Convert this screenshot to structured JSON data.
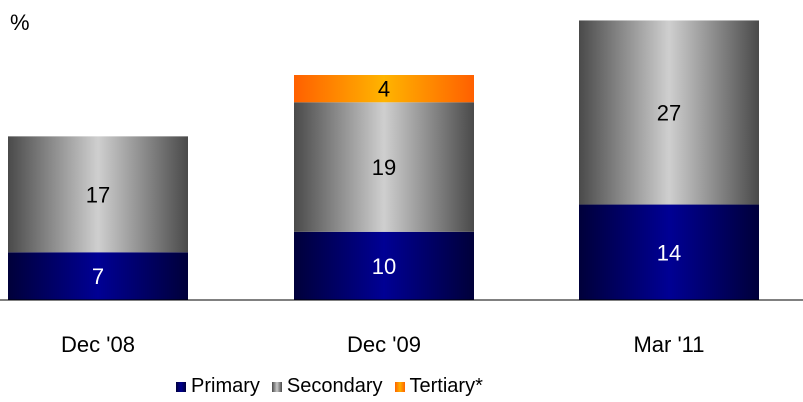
{
  "chart_data": {
    "type": "bar",
    "stacked": true,
    "unit_label": "%",
    "categories": [
      "Dec '08",
      "Dec '09",
      "Mar '11"
    ],
    "series": [
      {
        "name": "Primary",
        "values": [
          7,
          10,
          14
        ]
      },
      {
        "name": "Secondary",
        "values": [
          17,
          19,
          27
        ]
      },
      {
        "name": "Tertiary*",
        "values": [
          0,
          4,
          0
        ]
      }
    ],
    "ylim": [
      0,
      44
    ],
    "grid": false,
    "legend_position": "bottom",
    "colors": {
      "Primary": "#000080",
      "Secondary": "#9a9a9a",
      "Tertiary*": "#ff9900"
    }
  },
  "legend": {
    "items": [
      {
        "label": "Primary"
      },
      {
        "label": "Secondary"
      },
      {
        "label": "Tertiary*"
      }
    ]
  }
}
